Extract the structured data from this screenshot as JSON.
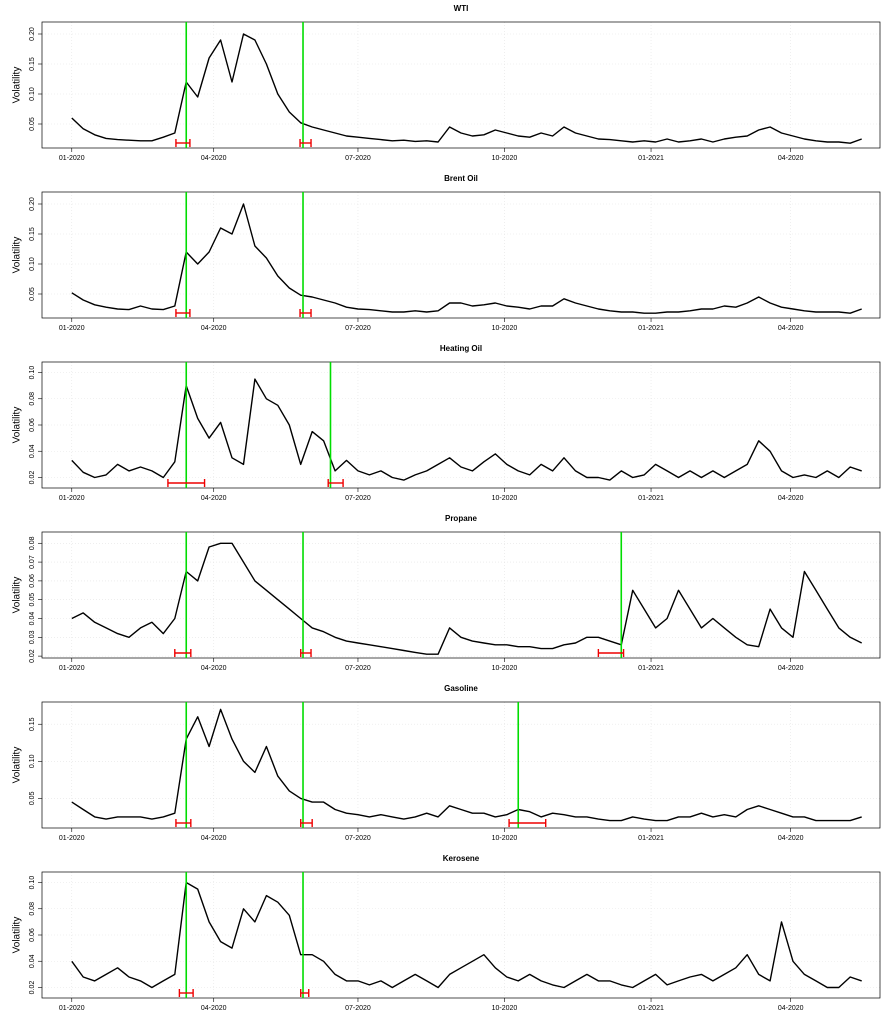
{
  "chart_data": [
    {
      "type": "line",
      "title": "WTI",
      "y_label": "Volatility",
      "color": "#000000",
      "grid": true,
      "break_color": "#00dd00",
      "ci_color": "#ee0000",
      "x": [
        0,
        5,
        10,
        15,
        20,
        25,
        30,
        35,
        40,
        45,
        50,
        55,
        60,
        65,
        70,
        75,
        80,
        85,
        90,
        95,
        100,
        105,
        110,
        115,
        120,
        125,
        130,
        135,
        140,
        145,
        150,
        155,
        160,
        165,
        170,
        175,
        180,
        185,
        190,
        195,
        200,
        205,
        210,
        215,
        220,
        225,
        230,
        235,
        240,
        245,
        250,
        255,
        260,
        265,
        270,
        275,
        280,
        285,
        290,
        295,
        300,
        305,
        310,
        315,
        320,
        325,
        330,
        335,
        340,
        345
      ],
      "values": [
        0.06,
        0.042,
        0.032,
        0.026,
        0.024,
        0.023,
        0.022,
        0.022,
        0.028,
        0.035,
        0.12,
        0.095,
        0.16,
        0.19,
        0.12,
        0.2,
        0.19,
        0.15,
        0.1,
        0.07,
        0.052,
        0.045,
        0.04,
        0.035,
        0.03,
        0.028,
        0.026,
        0.024,
        0.022,
        0.023,
        0.021,
        0.022,
        0.02,
        0.045,
        0.035,
        0.03,
        0.032,
        0.04,
        0.035,
        0.03,
        0.028,
        0.035,
        0.03,
        0.045,
        0.035,
        0.03,
        0.025,
        0.024,
        0.022,
        0.02,
        0.022,
        0.02,
        0.025,
        0.02,
        0.022,
        0.025,
        0.02,
        0.025,
        0.028,
        0.03,
        0.04,
        0.045,
        0.035,
        0.03,
        0.025,
        0.022,
        0.02,
        0.02,
        0.018,
        0.025
      ],
      "xlim": [
        -13,
        353
      ],
      "ylim": [
        0.01,
        0.22
      ],
      "xticks": [
        {
          "value": 0,
          "label": "01-2020"
        },
        {
          "value": 62,
          "label": "04-2020"
        },
        {
          "value": 125,
          "label": "07-2020"
        },
        {
          "value": 189,
          "label": "10-2020"
        },
        {
          "value": 253,
          "label": "01-2021"
        },
        {
          "value": 314,
          "label": "04-2020"
        }
      ],
      "yticks": [
        0.05,
        {
          "value": 0.1,
          "label": "0.10"
        },
        0.15,
        {
          "value": 0.2,
          "label": "0.20"
        }
      ],
      "breaks": [
        {
          "x": 50,
          "ci": [
            45.5,
            51.6
          ]
        },
        {
          "x": 101,
          "ci": [
            99.7,
            104.5
          ]
        }
      ]
    },
    {
      "type": "line",
      "title": "Brent Oil",
      "y_label": "Volatility",
      "color": "#000000",
      "grid": true,
      "break_color": "#00dd00",
      "ci_color": "#ee0000",
      "x": [
        0,
        5,
        10,
        15,
        20,
        25,
        30,
        35,
        40,
        45,
        50,
        55,
        60,
        65,
        70,
        75,
        80,
        85,
        90,
        95,
        100,
        105,
        110,
        115,
        120,
        125,
        130,
        135,
        140,
        145,
        150,
        155,
        160,
        165,
        170,
        175,
        180,
        185,
        190,
        195,
        200,
        205,
        210,
        215,
        220,
        225,
        230,
        235,
        240,
        245,
        250,
        255,
        260,
        265,
        270,
        275,
        280,
        285,
        290,
        295,
        300,
        305,
        310,
        315,
        320,
        325,
        330,
        335,
        340,
        345
      ],
      "values": [
        0.052,
        0.04,
        0.032,
        0.028,
        0.025,
        0.024,
        0.03,
        0.025,
        0.024,
        0.03,
        0.12,
        0.1,
        0.12,
        0.16,
        0.15,
        0.2,
        0.13,
        0.11,
        0.08,
        0.06,
        0.048,
        0.045,
        0.04,
        0.035,
        0.028,
        0.025,
        0.024,
        0.022,
        0.02,
        0.02,
        0.022,
        0.02,
        0.022,
        0.035,
        0.035,
        0.03,
        0.032,
        0.035,
        0.03,
        0.028,
        0.025,
        0.03,
        0.03,
        0.042,
        0.035,
        0.03,
        0.025,
        0.022,
        0.02,
        0.02,
        0.018,
        0.018,
        0.02,
        0.02,
        0.022,
        0.025,
        0.025,
        0.03,
        0.028,
        0.035,
        0.045,
        0.035,
        0.028,
        0.025,
        0.022,
        0.02,
        0.02,
        0.02,
        0.018,
        0.025
      ],
      "xlim": [
        -13,
        353
      ],
      "ylim": [
        0.01,
        0.22
      ],
      "xticks": [
        {
          "value": 0,
          "label": "01-2020"
        },
        {
          "value": 62,
          "label": "04-2020"
        },
        {
          "value": 125,
          "label": "07-2020"
        },
        {
          "value": 189,
          "label": "10-2020"
        },
        {
          "value": 253,
          "label": "01-2021"
        },
        {
          "value": 314,
          "label": "04-2020"
        }
      ],
      "yticks": [
        0.05,
        {
          "value": 0.1,
          "label": "0.10"
        },
        0.15,
        {
          "value": 0.2,
          "label": "0.20"
        }
      ],
      "breaks": [
        {
          "x": 50,
          "ci": [
            45.5,
            51.6
          ]
        },
        {
          "x": 101,
          "ci": [
            99.7,
            104.5
          ]
        }
      ]
    },
    {
      "type": "line",
      "title": "Heating Oil",
      "y_label": "Volatility",
      "color": "#000000",
      "grid": true,
      "break_color": "#00dd00",
      "ci_color": "#ee0000",
      "x": [
        0,
        5,
        10,
        15,
        20,
        25,
        30,
        35,
        40,
        45,
        50,
        55,
        60,
        65,
        70,
        75,
        80,
        85,
        90,
        95,
        100,
        105,
        110,
        115,
        120,
        125,
        130,
        135,
        140,
        145,
        150,
        155,
        160,
        165,
        170,
        175,
        180,
        185,
        190,
        195,
        200,
        205,
        210,
        215,
        220,
        225,
        230,
        235,
        240,
        245,
        250,
        255,
        260,
        265,
        270,
        275,
        280,
        285,
        290,
        295,
        300,
        305,
        310,
        315,
        320,
        325,
        330,
        335,
        340,
        345
      ],
      "values": [
        0.033,
        0.024,
        0.02,
        0.022,
        0.03,
        0.025,
        0.028,
        0.025,
        0.02,
        0.032,
        0.09,
        0.065,
        0.05,
        0.062,
        0.035,
        0.03,
        0.095,
        0.08,
        0.075,
        0.06,
        0.03,
        0.055,
        0.048,
        0.025,
        0.033,
        0.025,
        0.022,
        0.025,
        0.02,
        0.018,
        0.022,
        0.025,
        0.03,
        0.035,
        0.028,
        0.025,
        0.032,
        0.038,
        0.03,
        0.025,
        0.022,
        0.03,
        0.025,
        0.035,
        0.025,
        0.02,
        0.02,
        0.018,
        0.025,
        0.02,
        0.022,
        0.03,
        0.025,
        0.02,
        0.025,
        0.02,
        0.025,
        0.02,
        0.025,
        0.03,
        0.048,
        0.04,
        0.025,
        0.02,
        0.022,
        0.02,
        0.025,
        0.02,
        0.028,
        0.025
      ],
      "xlim": [
        -13,
        353
      ],
      "ylim": [
        0.012,
        0.108
      ],
      "xticks": [
        {
          "value": 0,
          "label": "01-2020"
        },
        {
          "value": 62,
          "label": "04-2020"
        },
        {
          "value": 125,
          "label": "07-2020"
        },
        {
          "value": 189,
          "label": "10-2020"
        },
        {
          "value": 253,
          "label": "01-2021"
        },
        {
          "value": 314,
          "label": "04-2020"
        }
      ],
      "yticks": [
        0.02,
        0.04,
        0.06,
        0.08,
        {
          "value": 0.1,
          "label": "0.10"
        }
      ],
      "breaks": [
        {
          "x": 50,
          "ci": [
            42,
            58
          ]
        },
        {
          "x": 113,
          "ci": [
            112,
            118.5
          ]
        }
      ]
    },
    {
      "type": "line",
      "title": "Propane",
      "y_label": "Volatility",
      "color": "#000000",
      "grid": true,
      "break_color": "#00dd00",
      "ci_color": "#ee0000",
      "x": [
        0,
        5,
        10,
        15,
        20,
        25,
        30,
        35,
        40,
        45,
        50,
        55,
        60,
        65,
        70,
        75,
        80,
        85,
        90,
        95,
        100,
        105,
        110,
        115,
        120,
        125,
        130,
        135,
        140,
        145,
        150,
        155,
        160,
        165,
        170,
        175,
        180,
        185,
        190,
        195,
        200,
        205,
        210,
        215,
        220,
        225,
        230,
        235,
        240,
        245,
        250,
        255,
        260,
        265,
        270,
        275,
        280,
        285,
        290,
        295,
        300,
        305,
        310,
        315,
        320,
        325,
        330,
        335,
        340,
        345
      ],
      "values": [
        0.04,
        0.043,
        0.038,
        0.035,
        0.032,
        0.03,
        0.035,
        0.038,
        0.032,
        0.04,
        0.065,
        0.06,
        0.078,
        0.08,
        0.08,
        0.07,
        0.06,
        0.055,
        0.05,
        0.045,
        0.04,
        0.035,
        0.033,
        0.03,
        0.028,
        0.027,
        0.026,
        0.025,
        0.024,
        0.023,
        0.022,
        0.021,
        0.021,
        0.035,
        0.03,
        0.028,
        0.027,
        0.026,
        0.026,
        0.025,
        0.025,
        0.024,
        0.024,
        0.026,
        0.027,
        0.03,
        0.03,
        0.028,
        0.026,
        0.055,
        0.045,
        0.035,
        0.04,
        0.055,
        0.045,
        0.035,
        0.04,
        0.035,
        0.03,
        0.026,
        0.025,
        0.045,
        0.035,
        0.03,
        0.065,
        0.055,
        0.045,
        0.035,
        0.03,
        0.027
      ],
      "xlim": [
        -13,
        353
      ],
      "ylim": [
        0.019,
        0.086
      ],
      "xticks": [
        {
          "value": 0,
          "label": "01-2020"
        },
        {
          "value": 62,
          "label": "04-2020"
        },
        {
          "value": 125,
          "label": "07-2020"
        },
        {
          "value": 189,
          "label": "10-2020"
        },
        {
          "value": 253,
          "label": "01-2021"
        },
        {
          "value": 314,
          "label": "04-2020"
        }
      ],
      "yticks": [
        0.02,
        0.03,
        0.04,
        0.05,
        0.06,
        0.07,
        0.08
      ],
      "breaks": [
        {
          "x": 50,
          "ci": [
            45,
            52
          ]
        },
        {
          "x": 101,
          "ci": [
            100,
            104.5
          ]
        },
        {
          "x": 240,
          "ci": [
            230,
            241
          ]
        }
      ]
    },
    {
      "type": "line",
      "title": "Gasoline",
      "y_label": "Volatility",
      "color": "#000000",
      "grid": true,
      "break_color": "#00dd00",
      "ci_color": "#ee0000",
      "x": [
        0,
        5,
        10,
        15,
        20,
        25,
        30,
        35,
        40,
        45,
        50,
        55,
        60,
        65,
        70,
        75,
        80,
        85,
        90,
        95,
        100,
        105,
        110,
        115,
        120,
        125,
        130,
        135,
        140,
        145,
        150,
        155,
        160,
        165,
        170,
        175,
        180,
        185,
        190,
        195,
        200,
        205,
        210,
        215,
        220,
        225,
        230,
        235,
        240,
        245,
        250,
        255,
        260,
        265,
        270,
        275,
        280,
        285,
        290,
        295,
        300,
        305,
        310,
        315,
        320,
        325,
        330,
        335,
        340,
        345
      ],
      "values": [
        0.045,
        0.035,
        0.025,
        0.022,
        0.025,
        0.025,
        0.025,
        0.022,
        0.025,
        0.03,
        0.13,
        0.16,
        0.12,
        0.17,
        0.13,
        0.1,
        0.085,
        0.12,
        0.08,
        0.06,
        0.05,
        0.045,
        0.045,
        0.035,
        0.03,
        0.028,
        0.025,
        0.028,
        0.025,
        0.022,
        0.025,
        0.03,
        0.025,
        0.04,
        0.035,
        0.03,
        0.03,
        0.025,
        0.028,
        0.035,
        0.032,
        0.025,
        0.03,
        0.028,
        0.025,
        0.025,
        0.022,
        0.02,
        0.02,
        0.025,
        0.022,
        0.02,
        0.02,
        0.025,
        0.025,
        0.03,
        0.025,
        0.028,
        0.025,
        0.035,
        0.04,
        0.035,
        0.03,
        0.025,
        0.025,
        0.02,
        0.02,
        0.02,
        0.02,
        0.025
      ],
      "xlim": [
        -13,
        353
      ],
      "ylim": [
        0.01,
        0.18
      ],
      "xticks": [
        {
          "value": 0,
          "label": "01-2020"
        },
        {
          "value": 62,
          "label": "04-2020"
        },
        {
          "value": 125,
          "label": "07-2020"
        },
        {
          "value": 189,
          "label": "10-2020"
        },
        {
          "value": 253,
          "label": "01-2021"
        },
        {
          "value": 314,
          "label": "04-2020"
        }
      ],
      "yticks": [
        0.05,
        {
          "value": 0.1,
          "label": "0.10"
        },
        0.15
      ],
      "breaks": [
        {
          "x": 50,
          "ci": [
            45.5,
            52
          ]
        },
        {
          "x": 101,
          "ci": [
            100,
            105
          ]
        },
        {
          "x": 195,
          "ci": [
            191,
            207
          ]
        }
      ]
    },
    {
      "type": "line",
      "title": "Kerosene",
      "y_label": "Volatility",
      "color": "#000000",
      "grid": true,
      "break_color": "#00dd00",
      "ci_color": "#ee0000",
      "x": [
        0,
        5,
        10,
        15,
        20,
        25,
        30,
        35,
        40,
        45,
        50,
        55,
        60,
        65,
        70,
        75,
        80,
        85,
        90,
        95,
        100,
        105,
        110,
        115,
        120,
        125,
        130,
        135,
        140,
        145,
        150,
        155,
        160,
        165,
        170,
        175,
        180,
        185,
        190,
        195,
        200,
        205,
        210,
        215,
        220,
        225,
        230,
        235,
        240,
        245,
        250,
        255,
        260,
        265,
        270,
        275,
        280,
        285,
        290,
        295,
        300,
        305,
        310,
        315,
        320,
        325,
        330,
        335,
        340,
        345
      ],
      "values": [
        0.04,
        0.028,
        0.025,
        0.03,
        0.035,
        0.028,
        0.025,
        0.02,
        0.025,
        0.03,
        0.1,
        0.095,
        0.07,
        0.055,
        0.05,
        0.08,
        0.07,
        0.09,
        0.085,
        0.075,
        0.045,
        0.045,
        0.04,
        0.03,
        0.025,
        0.025,
        0.022,
        0.025,
        0.02,
        0.025,
        0.03,
        0.025,
        0.02,
        0.03,
        0.035,
        0.04,
        0.045,
        0.035,
        0.028,
        0.025,
        0.03,
        0.025,
        0.022,
        0.02,
        0.025,
        0.03,
        0.025,
        0.025,
        0.022,
        0.02,
        0.025,
        0.03,
        0.022,
        0.025,
        0.028,
        0.03,
        0.025,
        0.03,
        0.035,
        0.045,
        0.03,
        0.025,
        0.07,
        0.04,
        0.03,
        0.025,
        0.02,
        0.02,
        0.028,
        0.025
      ],
      "xlim": [
        -13,
        353
      ],
      "ylim": [
        0.012,
        0.108
      ],
      "xticks": [
        {
          "value": 0,
          "label": "01-2020"
        },
        {
          "value": 62,
          "label": "04-2020"
        },
        {
          "value": 125,
          "label": "07-2020"
        },
        {
          "value": 189,
          "label": "10-2020"
        },
        {
          "value": 253,
          "label": "01-2021"
        },
        {
          "value": 314,
          "label": "04-2020"
        }
      ],
      "yticks": [
        0.02,
        0.04,
        0.06,
        0.08,
        {
          "value": 0.1,
          "label": "0.10"
        }
      ],
      "breaks": [
        {
          "x": 50,
          "ci": [
            47,
            53
          ]
        },
        {
          "x": 101,
          "ci": [
            100,
            103.5
          ]
        }
      ]
    }
  ]
}
